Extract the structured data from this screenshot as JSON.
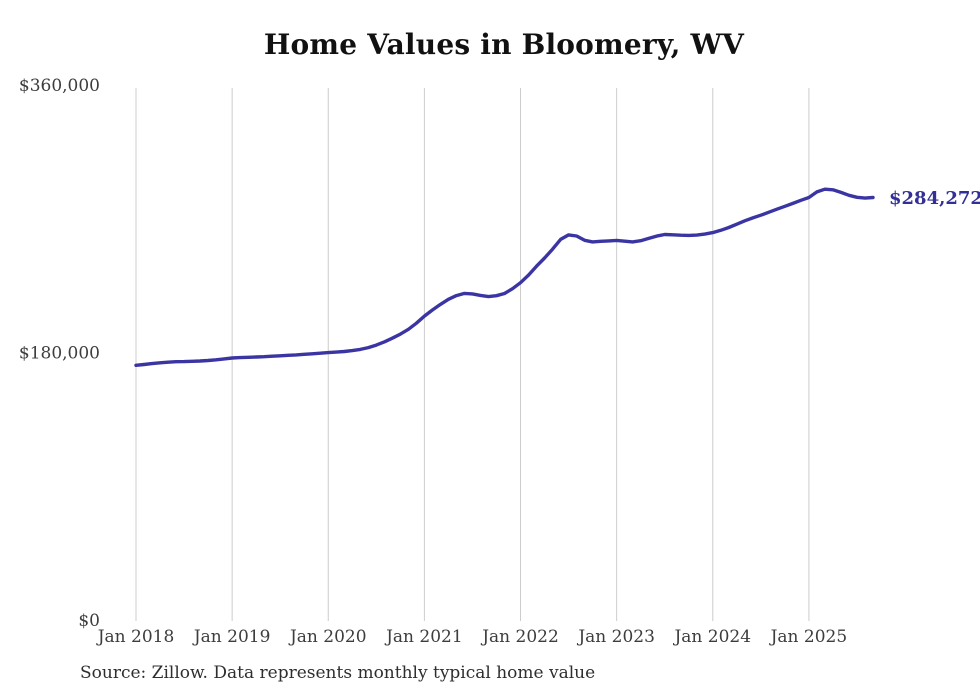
{
  "colors": {
    "background": "#ffffff",
    "line": "#3b35a3",
    "end_label": "#332f96",
    "grid": "#cccccc",
    "tick_text": "#3d3d3d",
    "title_text": "#111111",
    "source_text": "#2e2e2e"
  },
  "chart_data": {
    "type": "line",
    "title": "Home Values in Bloomery, WV",
    "source_note": "Source: Zillow. Data represents monthly typical home value",
    "end_label": "$284,272",
    "xlabel": "",
    "ylabel": "",
    "ylim": [
      0,
      360000
    ],
    "grid": "vertical-gridlines-only",
    "legend": "none",
    "y_ticks": [
      {
        "label": "$0",
        "value": 0
      },
      {
        "label": "$180,000",
        "value": 180000
      },
      {
        "label": "$360,000",
        "value": 360000
      }
    ],
    "x_ticks": [
      {
        "label": "Jan 2018",
        "month_index": 0
      },
      {
        "label": "Jan 2019",
        "month_index": 12
      },
      {
        "label": "Jan 2020",
        "month_index": 24
      },
      {
        "label": "Jan 2021",
        "month_index": 36
      },
      {
        "label": "Jan 2022",
        "month_index": 48
      },
      {
        "label": "Jan 2023",
        "month_index": 60
      },
      {
        "label": "Jan 2024",
        "month_index": 72
      },
      {
        "label": "Jan 2025",
        "month_index": 84
      }
    ],
    "series": [
      {
        "name": "Monthly typical home value",
        "start_month": "Jan 2018",
        "interval": "monthly",
        "values": [
          171400,
          171900,
          172500,
          173100,
          173500,
          173800,
          173900,
          174100,
          174300,
          174600,
          175100,
          175700,
          176300,
          176600,
          176800,
          177000,
          177200,
          177500,
          177800,
          178100,
          178400,
          178800,
          179100,
          179500,
          179900,
          180300,
          180700,
          181300,
          182100,
          183300,
          185000,
          187100,
          189600,
          192400,
          195600,
          199700,
          204500,
          208600,
          212400,
          215800,
          218300,
          219800,
          219400,
          218400,
          217600,
          218200,
          219700,
          222900,
          227000,
          232100,
          238100,
          243600,
          249600,
          256100,
          259100,
          258400,
          255500,
          254400,
          254800,
          255100,
          255400,
          254900,
          254400,
          255200,
          256800,
          258300,
          259400,
          259200,
          258900,
          258800,
          259000,
          259700,
          260700,
          262200,
          264100,
          266300,
          268600,
          270600,
          272400,
          274400,
          276400,
          278400,
          280300,
          282400,
          284300,
          288100,
          289900,
          289500,
          287700,
          285800,
          284400,
          283900,
          284272
        ]
      }
    ]
  }
}
